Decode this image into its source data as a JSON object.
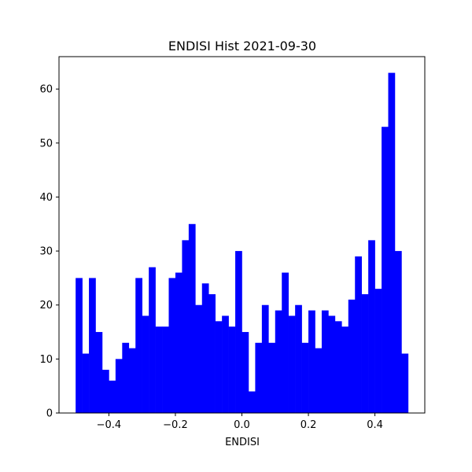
{
  "chart_data": {
    "type": "bar",
    "title": "ENDISI Hist 2021-09-30",
    "xlabel": "ENDISI",
    "ylabel": "",
    "bin_start": -0.5,
    "bin_width": 0.02,
    "values": [
      25,
      11,
      25,
      15,
      8,
      6,
      10,
      13,
      12,
      25,
      18,
      27,
      16,
      16,
      25,
      26,
      32,
      35,
      20,
      24,
      22,
      17,
      18,
      16,
      30,
      15,
      4,
      13,
      20,
      13,
      19,
      26,
      18,
      20,
      13,
      19,
      12,
      19,
      18,
      17,
      16,
      21,
      29,
      22,
      32,
      23,
      53,
      63,
      30,
      11
    ],
    "xlim": [
      -0.55,
      0.55
    ],
    "ylim": [
      0,
      66
    ],
    "xticks": [
      -0.4,
      -0.2,
      0.0,
      0.2,
      0.4
    ],
    "xtick_labels": [
      "−0.4",
      "−0.2",
      "0.0",
      "0.2",
      "0.4"
    ],
    "yticks": [
      0,
      10,
      20,
      30,
      40,
      50,
      60
    ],
    "ytick_labels": [
      "0",
      "10",
      "20",
      "30",
      "40",
      "50",
      "60"
    ],
    "bar_color": "#0000ff",
    "grid": false
  }
}
